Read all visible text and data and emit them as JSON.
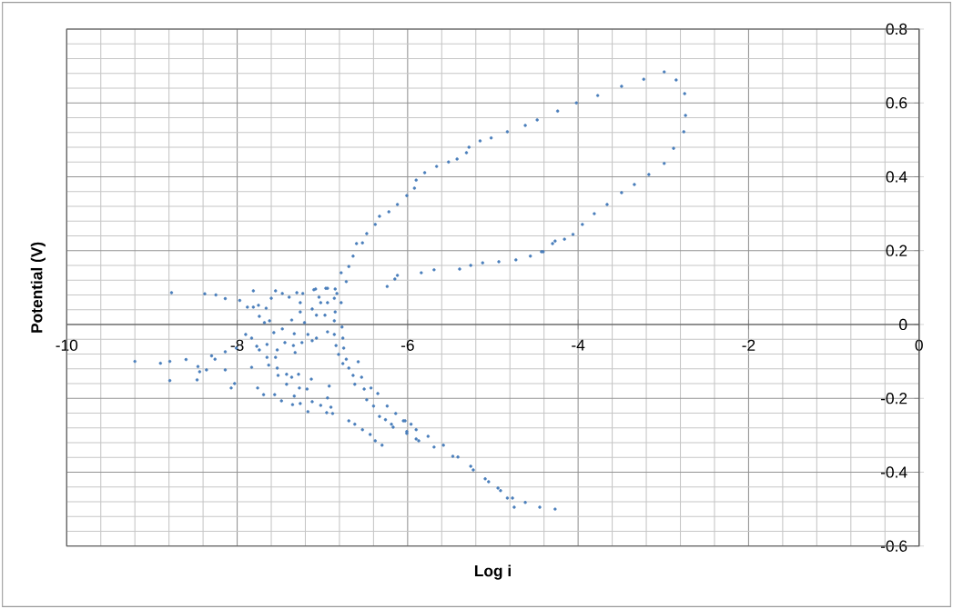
{
  "chart_data": {
    "type": "scatter",
    "xlabel": "Log i",
    "ylabel": "Potential (V)",
    "xlim": [
      -10,
      0
    ],
    "ylim": [
      -0.6,
      0.8
    ],
    "xticks": [
      -10,
      -8,
      -6,
      -4,
      -2,
      0
    ],
    "yticks": [
      -0.6,
      -0.4,
      -0.2,
      0,
      0.2,
      0.4,
      0.6,
      0.8
    ],
    "grid": true,
    "marker": "circle",
    "series": [
      {
        "color": "#4a7ebb",
        "x": [
          -9.2,
          -8.77,
          -8.38,
          -8.25,
          -8.14,
          -7.97,
          -8.9,
          -8.79,
          -8.6,
          -8.79,
          -8.46,
          -8.44,
          -8.36,
          -8.47,
          -8.3,
          -8.26,
          -8.14,
          -8.14,
          -8.01,
          -8.03,
          -8.07,
          -7.9,
          -7.83,
          -7.88,
          -7.81,
          -7.75,
          -7.81,
          -7.66,
          -7.74,
          -7.68,
          -7.62,
          -7.77,
          -7.74,
          -7.65,
          -7.65,
          -7.63,
          -7.83,
          -7.76,
          -7.69,
          -7.6,
          -7.55,
          -7.47,
          -7.57,
          -7.47,
          -7.53,
          -7.55,
          -7.53,
          -7.52,
          -7.56,
          -7.48,
          -7.44,
          -7.34,
          -7.39,
          -7.3,
          -7.36,
          -7.26,
          -7.23,
          -7.26,
          -7.33,
          -7.24,
          -7.32,
          -7.42,
          -7.36,
          -7.28,
          -7.42,
          -7.27,
          -7.33,
          -7.35,
          -7.26,
          -7.21,
          -7.17,
          -7.12,
          -7.07,
          -7.18,
          -7.17,
          -7.12,
          -7.13,
          -7.12,
          -7.07,
          -7.04,
          -7.02,
          -7.1,
          -6.96,
          -6.94,
          -6.97,
          -6.94,
          -7.02,
          -6.95,
          -6.92,
          -6.94,
          -6.9,
          -6.88,
          -6.85,
          -6.86,
          -6.85,
          -6.86,
          -6.86,
          -6.84,
          -6.81,
          -6.78,
          -6.77,
          -6.76,
          -6.75,
          -6.76,
          -6.72,
          -6.69,
          -6.64,
          -6.58,
          -6.62,
          -6.54,
          -6.51,
          -6.48,
          -6.43,
          -6.4,
          -6.35,
          -6.69,
          -6.62,
          -6.53,
          -6.44,
          -6.38,
          -6.3,
          -6.24,
          -6.14,
          -6.26,
          -6.17,
          -6.05,
          -5.96,
          -6.01,
          -5.9,
          -6.33,
          -6.19,
          -6.03,
          -5.9,
          -5.76,
          -5.58,
          -5.41,
          -5.23,
          -5.05,
          -4.91,
          -4.77,
          -4.62,
          -4.45,
          -4.27,
          -6.01,
          -5.87,
          -5.69,
          -5.47,
          -5.26,
          -5.09,
          -4.94,
          -4.83,
          -4.75,
          -6.83,
          -6.78,
          -6.72,
          -6.69,
          -6.64,
          -6.6,
          -6.53,
          -6.48,
          -6.38,
          -6.33,
          -6.22,
          -6.12,
          -6.01,
          -5.92,
          -5.9,
          -5.8,
          -5.66,
          -5.52,
          -5.42,
          -5.31,
          -5.28,
          -5.15,
          -5.02,
          -7.08,
          -6.94,
          -6.24,
          -6.15,
          -6.12,
          -5.84,
          -5.69,
          -5.39,
          -5.26,
          -5.12,
          -4.93,
          -4.73,
          -4.56,
          -4.43,
          -4.3,
          -4.16,
          -4.06,
          -4.83,
          -4.62,
          -4.48,
          -4.24,
          -4.02,
          -3.77,
          -3.49,
          -3.23,
          -2.99,
          -2.85,
          -2.75,
          -2.74,
          -2.76,
          -2.88,
          -2.99,
          -3.17,
          -3.34,
          -3.49,
          -3.66,
          -3.81,
          -3.95,
          -4.27,
          -4.41
        ],
        "values": [
          -0.1,
          0.086,
          0.083,
          0.08,
          0.07,
          0.065,
          -0.105,
          -0.1,
          -0.095,
          -0.152,
          -0.114,
          -0.128,
          -0.123,
          -0.15,
          -0.085,
          -0.094,
          -0.123,
          -0.074,
          -0.064,
          -0.16,
          -0.172,
          -0.027,
          -0.037,
          0.047,
          0.047,
          0.052,
          0.091,
          0.044,
          0.022,
          0.005,
          0.01,
          -0.059,
          -0.069,
          -0.054,
          -0.089,
          -0.11,
          -0.116,
          -0.172,
          -0.19,
          0.071,
          0.091,
          0.084,
          -0.022,
          -0.012,
          -0.069,
          -0.089,
          -0.118,
          -0.138,
          -0.19,
          -0.207,
          -0.049,
          -0.057,
          0.074,
          0.086,
          0.012,
          0.059,
          0.084,
          0.034,
          -0.025,
          -0.049,
          -0.076,
          -0.135,
          -0.143,
          -0.135,
          -0.162,
          -0.172,
          -0.194,
          -0.217,
          -0.214,
          0.005,
          -0.027,
          -0.044,
          -0.037,
          -0.175,
          -0.236,
          -0.209,
          -0.148,
          0.042,
          0.025,
          0.074,
          0.059,
          0.094,
          0.098,
          0.059,
          0.025,
          -0.02,
          -0.219,
          -0.239,
          -0.167,
          -0.199,
          -0.224,
          -0.241,
          0.096,
          0.071,
          0.034,
          0.01,
          -0.027,
          -0.057,
          -0.081,
          0.059,
          -0.007,
          -0.037,
          -0.064,
          -0.106,
          -0.094,
          -0.118,
          -0.138,
          -0.101,
          -0.162,
          -0.143,
          -0.175,
          -0.204,
          -0.172,
          -0.221,
          -0.187,
          -0.261,
          -0.27,
          -0.285,
          -0.298,
          -0.315,
          -0.327,
          -0.221,
          -0.241,
          -0.258,
          -0.278,
          -0.261,
          -0.27,
          -0.295,
          -0.31,
          -0.249,
          -0.27,
          -0.261,
          -0.285,
          -0.303,
          -0.327,
          -0.359,
          -0.394,
          -0.426,
          -0.45,
          -0.47,
          -0.482,
          -0.495,
          -0.5,
          -0.29,
          -0.315,
          -0.332,
          -0.357,
          -0.384,
          -0.418,
          -0.443,
          -0.47,
          -0.495,
          0.084,
          0.14,
          0.116,
          0.157,
          0.185,
          0.219,
          0.221,
          0.246,
          0.271,
          0.293,
          0.305,
          0.325,
          0.349,
          0.369,
          0.391,
          0.411,
          0.428,
          0.44,
          0.448,
          0.465,
          0.48,
          0.497,
          0.505,
          0.096,
          0.098,
          0.103,
          0.123,
          0.133,
          0.14,
          0.148,
          0.15,
          0.16,
          0.167,
          0.17,
          0.175,
          0.185,
          0.197,
          0.219,
          0.231,
          0.244,
          0.522,
          0.539,
          0.554,
          0.578,
          0.6,
          0.62,
          0.645,
          0.664,
          0.684,
          0.662,
          0.625,
          0.566,
          0.522,
          0.477,
          0.436,
          0.406,
          0.379,
          0.357,
          0.325,
          0.3,
          0.271,
          0.226,
          0.197
        ]
      }
    ]
  }
}
